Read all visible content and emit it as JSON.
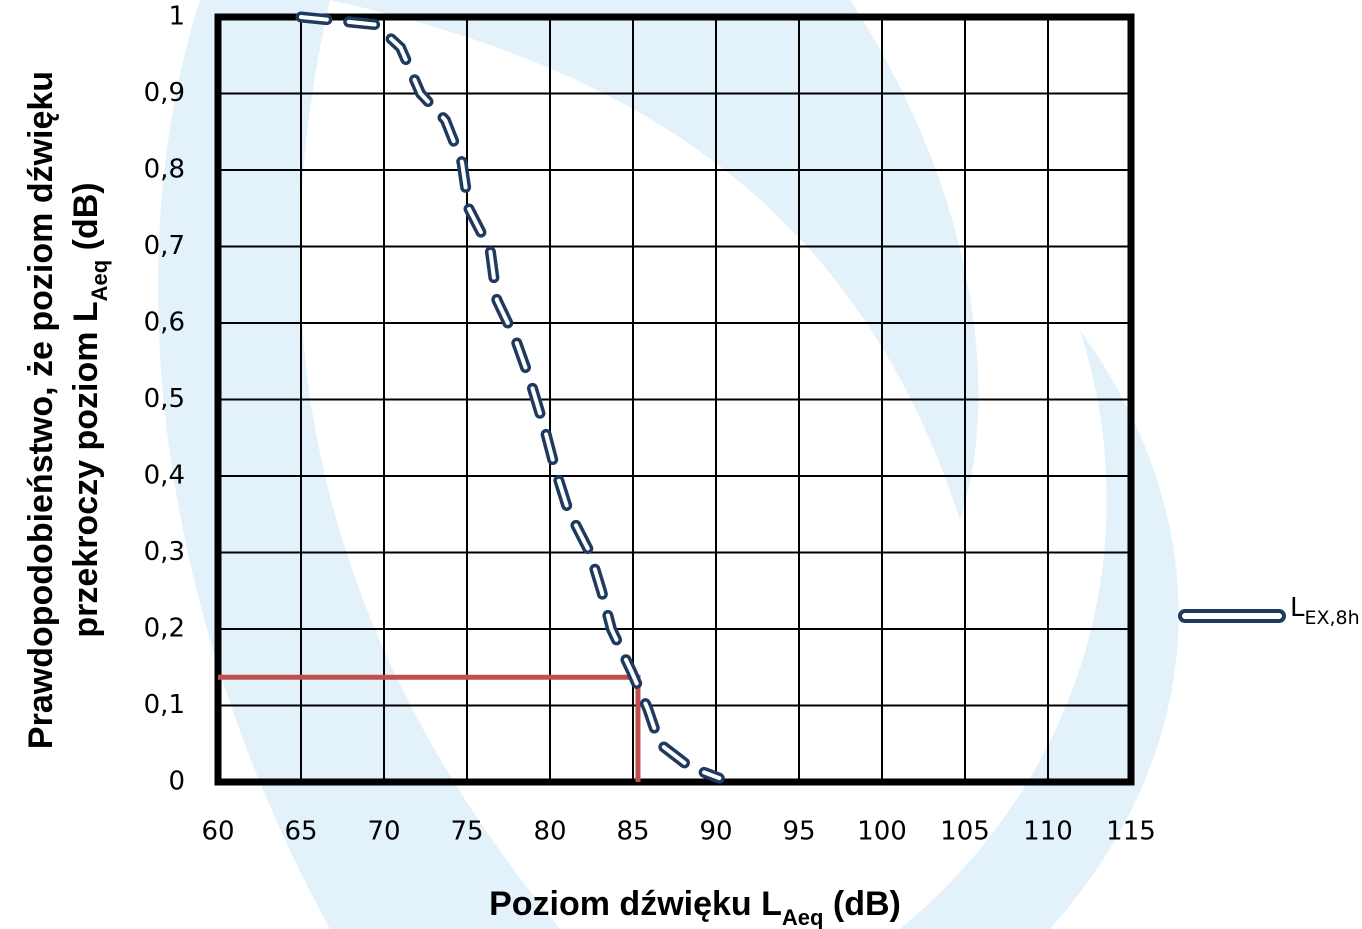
{
  "chart_data": {
    "type": "line",
    "x_label": {
      "text": "Poziom dźwięku L",
      "sub": "Aeq",
      "tail": " (dB)"
    },
    "y_label": {
      "line1": "Prawdopodobieństwo, że poziom dźwięku",
      "text": "przekroczy poziom L",
      "sub": "Aeq",
      "tail": " (dB)"
    },
    "xlim": [
      60,
      115
    ],
    "xticks": [
      60,
      65,
      70,
      75,
      80,
      85,
      90,
      95,
      100,
      105,
      110,
      115
    ],
    "ylim": [
      0,
      1
    ],
    "yticks": [
      0,
      {
        "value": 0.1,
        "label": "0,1"
      },
      {
        "value": 0.2,
        "label": "0,2"
      },
      {
        "value": 0.3,
        "label": "0,3"
      },
      {
        "value": 0.4,
        "label": "0,4"
      },
      {
        "value": 0.5,
        "label": "0,5"
      },
      {
        "value": 0.6,
        "label": "0,6"
      },
      {
        "value": 0.7,
        "label": "0,7"
      },
      {
        "value": 0.8,
        "label": "0,8"
      },
      {
        "value": 0.9,
        "label": "0,9"
      },
      1
    ],
    "grid": true,
    "series": [
      {
        "name": "L",
        "name_sub": "EX,8h",
        "color": "#1f3a5f",
        "x": [
          65,
          69.5,
          71,
          72.2,
          73.7,
          74.7,
          75.1,
          76.4,
          76.8,
          77.9,
          78.8,
          79.7,
          80.3,
          81.1,
          82.4,
          83.1,
          83.7,
          84.9,
          85.9,
          86.6,
          88.4,
          90.2
        ],
        "values": [
          1.0,
          0.99,
          0.96,
          0.9,
          0.865,
          0.81,
          0.75,
          0.695,
          0.63,
          0.58,
          0.525,
          0.46,
          0.41,
          0.355,
          0.3,
          0.25,
          0.2,
          0.145,
          0.095,
          0.05,
          0.02,
          0.005
        ]
      }
    ],
    "threshold": {
      "x": 85.3,
      "y": 0.137,
      "color": "#c0504d"
    },
    "legend": "right"
  }
}
